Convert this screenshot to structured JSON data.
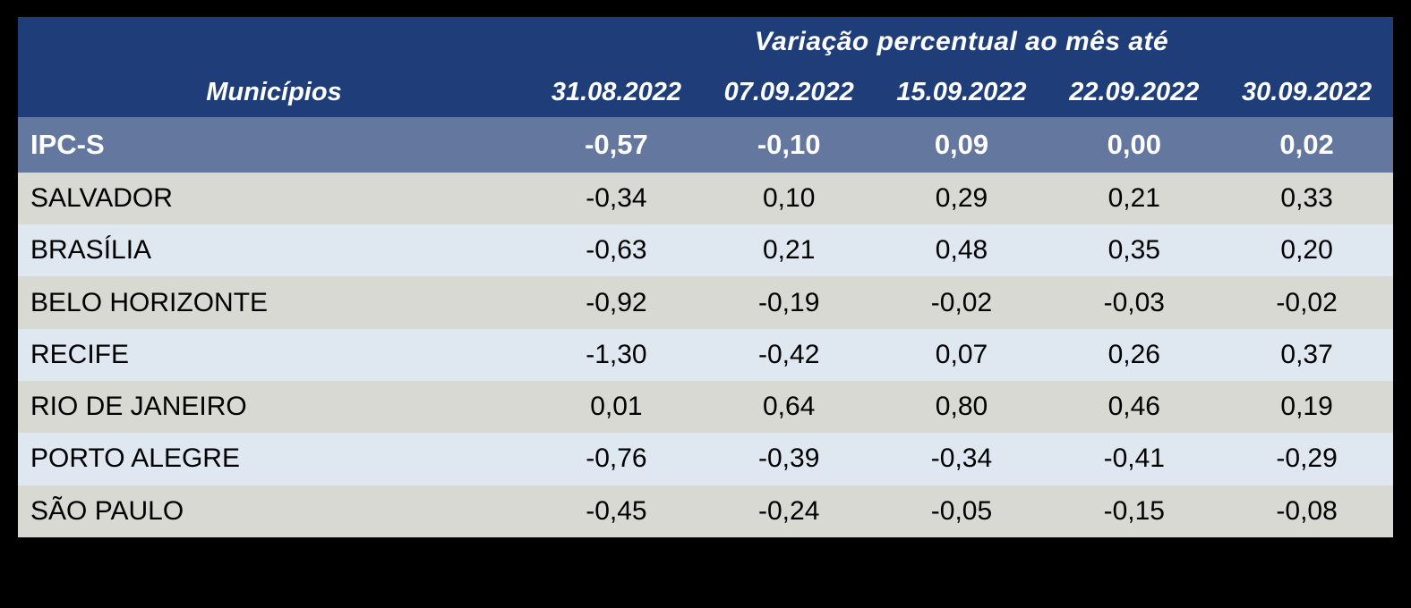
{
  "colors": {
    "page_bg": "#000000",
    "header_bg": "#1F3D78",
    "header_text": "#FFFFFF",
    "highlight_row_bg": "#64789F",
    "highlight_row_text": "#FFFFFF",
    "row_gray_bg": "#D9D9D4",
    "row_blue_bg": "#DFE7F0",
    "data_text": "#000000"
  },
  "table": {
    "header_title": "Variação percentual ao mês até",
    "municipios_header": "Municípios",
    "date_columns": [
      "31.08.2022",
      "07.09.2022",
      "15.09.2022",
      "22.09.2022",
      "30.09.2022"
    ],
    "rows": [
      {
        "label": "IPC-S",
        "values": [
          "-0,57",
          "-0,10",
          "0,09",
          "0,00",
          "0,02"
        ]
      },
      {
        "label": "SALVADOR",
        "values": [
          "-0,34",
          "0,10",
          "0,29",
          "0,21",
          "0,33"
        ]
      },
      {
        "label": "BRASÍLIA",
        "values": [
          "-0,63",
          "0,21",
          "0,48",
          "0,35",
          "0,20"
        ]
      },
      {
        "label": "BELO HORIZONTE",
        "values": [
          "-0,92",
          "-0,19",
          "-0,02",
          "-0,03",
          "-0,02"
        ]
      },
      {
        "label": "RECIFE",
        "values": [
          "-1,30",
          "-0,42",
          "0,07",
          "0,26",
          "0,37"
        ]
      },
      {
        "label": "RIO DE JANEIRO",
        "values": [
          "0,01",
          "0,64",
          "0,80",
          "0,46",
          "0,19"
        ]
      },
      {
        "label": "PORTO ALEGRE",
        "values": [
          "-0,76",
          "-0,39",
          "-0,34",
          "-0,41",
          "-0,29"
        ]
      },
      {
        "label": "SÃO PAULO",
        "values": [
          "-0,45",
          "-0,24",
          "-0,05",
          "-0,15",
          "-0,08"
        ]
      }
    ]
  },
  "chart_data": {
    "type": "table",
    "title": "Variação percentual ao mês até",
    "row_header_label": "Municípios",
    "columns": [
      "31.08.2022",
      "07.09.2022",
      "15.09.2022",
      "22.09.2022",
      "30.09.2022"
    ],
    "series": [
      {
        "name": "IPC-S",
        "values": [
          -0.57,
          -0.1,
          0.09,
          0.0,
          0.02
        ]
      },
      {
        "name": "SALVADOR",
        "values": [
          -0.34,
          0.1,
          0.29,
          0.21,
          0.33
        ]
      },
      {
        "name": "BRASÍLIA",
        "values": [
          -0.63,
          0.21,
          0.48,
          0.35,
          0.2
        ]
      },
      {
        "name": "BELO HORIZONTE",
        "values": [
          -0.92,
          -0.19,
          -0.02,
          -0.03,
          -0.02
        ]
      },
      {
        "name": "RECIFE",
        "values": [
          -1.3,
          -0.42,
          0.07,
          0.26,
          0.37
        ]
      },
      {
        "name": "RIO DE JANEIRO",
        "values": [
          0.01,
          0.64,
          0.8,
          0.46,
          0.19
        ]
      },
      {
        "name": "PORTO ALEGRE",
        "values": [
          -0.76,
          -0.39,
          -0.34,
          -0.41,
          -0.29
        ]
      },
      {
        "name": "SÃO PAULO",
        "values": [
          -0.45,
          -0.24,
          -0.05,
          -0.15,
          -0.08
        ]
      }
    ]
  }
}
